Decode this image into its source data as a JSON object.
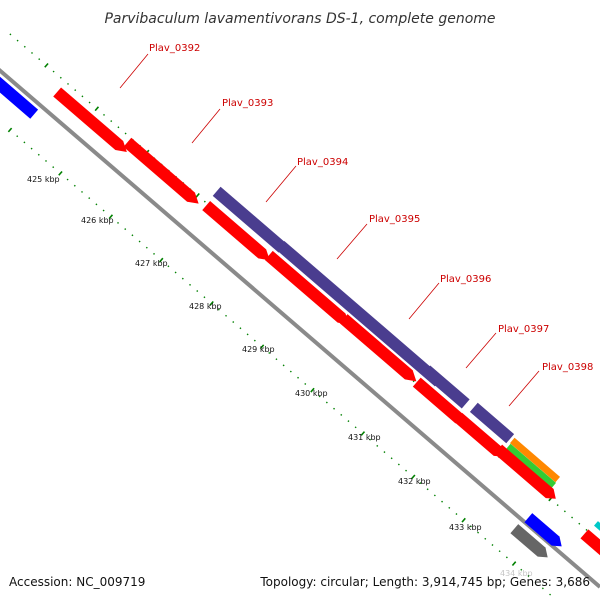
{
  "title": "Parvibaculum lavamentivorans DS-1, complete genome",
  "footer": {
    "accession": "Accession: NC_009719",
    "topology": "Topology: circular; Length: 3,914,745 bp; Genes: 3,686"
  },
  "kbp_labels": [
    "425 kbp",
    "426 kbp",
    "427 kbp",
    "428 kbp",
    "429 kbp",
    "430 kbp",
    "431 kbp",
    "432 kbp",
    "433 kbp",
    "434 kbp"
  ],
  "gene_labels": [
    "Plav_0392",
    "Plav_0393",
    "Plav_0394",
    "Plav_0395",
    "Plav_0396",
    "Plav_0397",
    "Plav_0398"
  ],
  "colors": {
    "backbone": "#8a8a8a",
    "red": "#ff0000",
    "purple": "#4a3d8f",
    "blue": "#0000ff",
    "orange": "#ff8800",
    "green": "#33cc33",
    "gray": "#666666",
    "cyan": "#00c8c8",
    "tick": "#008000",
    "label": "#cc0000"
  }
}
